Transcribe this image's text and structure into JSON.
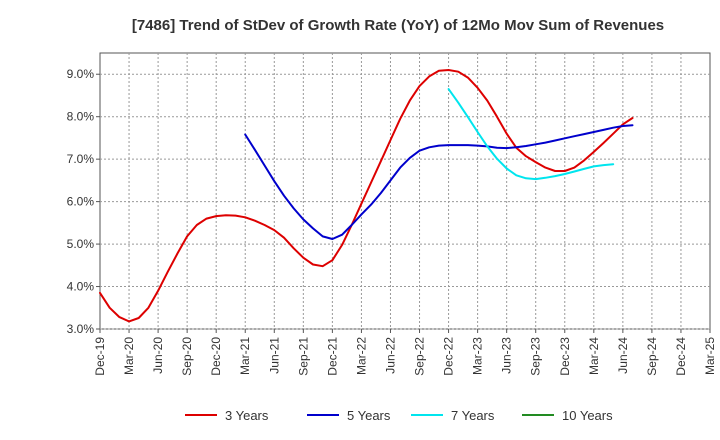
{
  "chart_data": {
    "type": "line",
    "title": "[7486]  Trend of StDev of Growth Rate (YoY) of 12Mo Mov Sum of Revenues",
    "xlabel": "",
    "ylabel": "",
    "y_tick_labels": [
      "3.0%",
      "4.0%",
      "5.0%",
      "6.0%",
      "7.0%",
      "8.0%",
      "9.0%"
    ],
    "y_tick_values": [
      3,
      4,
      5,
      6,
      7,
      8,
      9
    ],
    "ylim": [
      3.0,
      9.5
    ],
    "x_tick_labels": [
      "Dec-19",
      "Mar-20",
      "Jun-20",
      "Sep-20",
      "Dec-20",
      "Mar-21",
      "Jun-21",
      "Sep-21",
      "Dec-21",
      "Mar-22",
      "Jun-22",
      "Sep-22",
      "Dec-22",
      "Mar-23",
      "Jun-23",
      "Sep-23",
      "Dec-23",
      "Mar-24",
      "Jun-24",
      "Sep-24",
      "Dec-24",
      "Mar-25"
    ],
    "x_index_range": [
      0,
      63
    ],
    "grid": true,
    "legend_position": "bottom",
    "series": [
      {
        "name": "3 Years",
        "color": "#dd0000",
        "points": [
          [
            0,
            3.85
          ],
          [
            1,
            3.5
          ],
          [
            2,
            3.28
          ],
          [
            3,
            3.18
          ],
          [
            4,
            3.26
          ],
          [
            5,
            3.5
          ],
          [
            6,
            3.9
          ],
          [
            7,
            4.35
          ],
          [
            8,
            4.78
          ],
          [
            9,
            5.18
          ],
          [
            10,
            5.45
          ],
          [
            11,
            5.6
          ],
          [
            12,
            5.66
          ],
          [
            13,
            5.68
          ],
          [
            14,
            5.67
          ],
          [
            15,
            5.63
          ],
          [
            16,
            5.55
          ],
          [
            17,
            5.45
          ],
          [
            18,
            5.33
          ],
          [
            19,
            5.15
          ],
          [
            20,
            4.9
          ],
          [
            21,
            4.68
          ],
          [
            22,
            4.52
          ],
          [
            23,
            4.48
          ],
          [
            24,
            4.62
          ],
          [
            25,
            4.98
          ],
          [
            26,
            5.45
          ],
          [
            27,
            5.95
          ],
          [
            28,
            6.45
          ],
          [
            29,
            6.95
          ],
          [
            30,
            7.45
          ],
          [
            31,
            7.95
          ],
          [
            32,
            8.38
          ],
          [
            33,
            8.72
          ],
          [
            34,
            8.95
          ],
          [
            35,
            9.08
          ],
          [
            36,
            9.1
          ],
          [
            37,
            9.06
          ],
          [
            38,
            8.92
          ],
          [
            39,
            8.68
          ],
          [
            40,
            8.38
          ],
          [
            41,
            8.0
          ],
          [
            42,
            7.6
          ],
          [
            43,
            7.27
          ],
          [
            44,
            7.07
          ],
          [
            45,
            6.93
          ],
          [
            46,
            6.8
          ],
          [
            47,
            6.72
          ],
          [
            48,
            6.72
          ],
          [
            49,
            6.8
          ],
          [
            50,
            6.97
          ],
          [
            51,
            7.17
          ],
          [
            52,
            7.38
          ],
          [
            53,
            7.6
          ],
          [
            54,
            7.82
          ],
          [
            55,
            7.97
          ]
        ]
      },
      {
        "name": "5 Years",
        "color": "#0000cc",
        "points": [
          [
            15,
            7.58
          ],
          [
            16,
            7.22
          ],
          [
            17,
            6.85
          ],
          [
            18,
            6.48
          ],
          [
            19,
            6.14
          ],
          [
            20,
            5.84
          ],
          [
            21,
            5.58
          ],
          [
            22,
            5.37
          ],
          [
            23,
            5.18
          ],
          [
            24,
            5.12
          ],
          [
            25,
            5.22
          ],
          [
            26,
            5.45
          ],
          [
            27,
            5.7
          ],
          [
            28,
            5.93
          ],
          [
            29,
            6.2
          ],
          [
            30,
            6.5
          ],
          [
            31,
            6.8
          ],
          [
            32,
            7.03
          ],
          [
            33,
            7.2
          ],
          [
            34,
            7.28
          ],
          [
            35,
            7.32
          ],
          [
            36,
            7.33
          ],
          [
            37,
            7.33
          ],
          [
            38,
            7.33
          ],
          [
            39,
            7.32
          ],
          [
            40,
            7.3
          ],
          [
            41,
            7.27
          ],
          [
            42,
            7.26
          ],
          [
            43,
            7.28
          ],
          [
            44,
            7.31
          ],
          [
            45,
            7.35
          ],
          [
            46,
            7.39
          ],
          [
            47,
            7.44
          ],
          [
            48,
            7.49
          ],
          [
            49,
            7.54
          ],
          [
            50,
            7.59
          ],
          [
            51,
            7.64
          ],
          [
            52,
            7.69
          ],
          [
            53,
            7.74
          ],
          [
            54,
            7.78
          ],
          [
            55,
            7.8
          ]
        ]
      },
      {
        "name": "7 Years",
        "color": "#00e5ee",
        "points": [
          [
            36,
            8.65
          ],
          [
            37,
            8.33
          ],
          [
            38,
            7.99
          ],
          [
            39,
            7.64
          ],
          [
            40,
            7.3
          ],
          [
            41,
            7.01
          ],
          [
            42,
            6.78
          ],
          [
            43,
            6.62
          ],
          [
            44,
            6.55
          ],
          [
            45,
            6.53
          ],
          [
            46,
            6.56
          ],
          [
            47,
            6.6
          ],
          [
            48,
            6.65
          ],
          [
            49,
            6.71
          ],
          [
            50,
            6.77
          ],
          [
            51,
            6.83
          ],
          [
            52,
            6.86
          ],
          [
            53,
            6.88
          ]
        ]
      },
      {
        "name": "10 Years",
        "color": "#228b22",
        "points": []
      }
    ]
  }
}
